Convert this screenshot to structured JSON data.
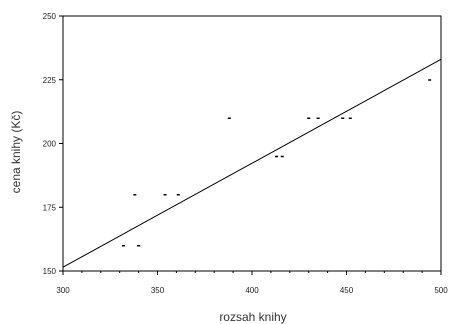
{
  "chart_data": {
    "type": "scatter",
    "xlabel": "rozsah knihy",
    "ylabel": "cena knihy (Kč)",
    "xlim": [
      300,
      500
    ],
    "ylim": [
      150,
      250
    ],
    "x_ticks": [
      300,
      350,
      400,
      450,
      500
    ],
    "x_minor_ticks": [
      310,
      320,
      330,
      340,
      360,
      370,
      380,
      390,
      410,
      420,
      430,
      440,
      460,
      470,
      480,
      490
    ],
    "y_ticks": [
      150,
      175,
      200,
      225,
      250
    ],
    "grid": false,
    "series": [
      {
        "x": [
          332,
          338,
          340,
          354,
          361,
          388,
          413,
          416,
          430,
          435,
          448,
          452,
          494
        ],
        "y": [
          160,
          180,
          160,
          180,
          180,
          210,
          195,
          195,
          210,
          210,
          210,
          210,
          225
        ]
      }
    ],
    "regression_line": {
      "x": [
        300,
        500
      ],
      "y": [
        151.5,
        233
      ]
    },
    "colors": {
      "points": "#000000",
      "line": "#000000",
      "axes": "#000000"
    }
  }
}
